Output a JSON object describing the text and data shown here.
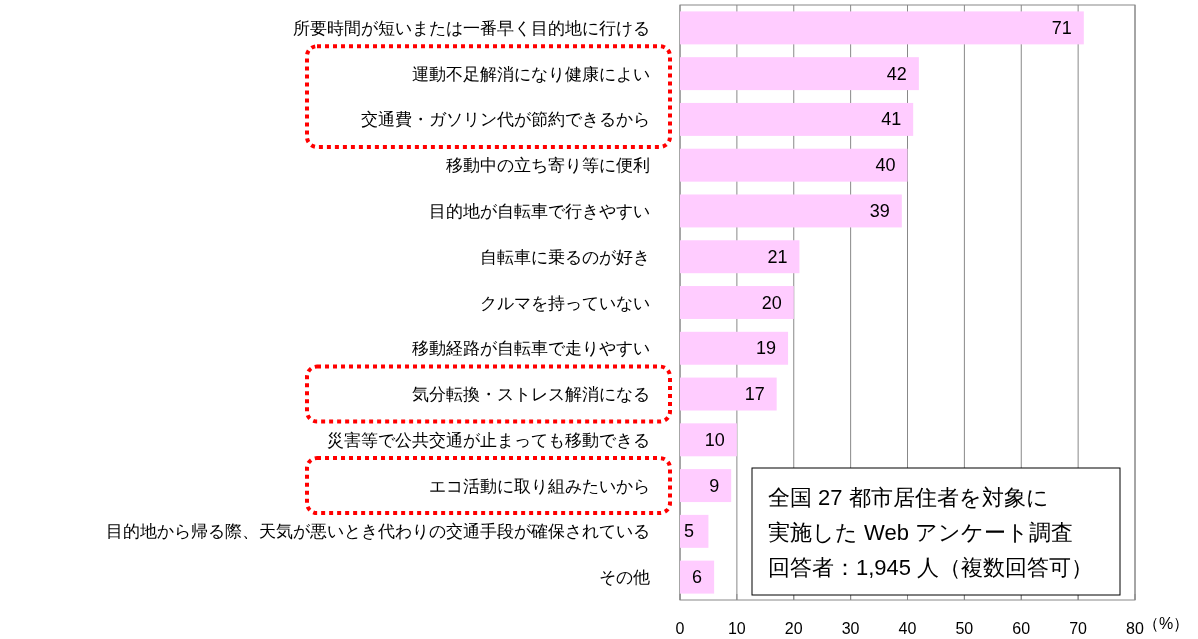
{
  "chart_data": {
    "type": "bar",
    "orientation": "horizontal",
    "categories": [
      "所要時間が短いまたは一番早く目的地に行ける",
      "運動不足解消になり健康によい",
      "交通費・ガソリン代が節約できるから",
      "移動中の立ち寄り等に便利",
      "目的地が自転車で行きやすい",
      "自転車に乗るのが好き",
      "クルマを持っていない",
      "移動経路が自転車で走りやすい",
      "気分転換・ストレス解消になる",
      "災害等で公共交通が止まっても移動できる",
      "エコ活動に取り組みたいから",
      "目的地から帰る際、天気が悪いとき代わりの交通手段が確保されている",
      "その他"
    ],
    "values": [
      71,
      42,
      41,
      40,
      39,
      21,
      20,
      19,
      17,
      10,
      9,
      5,
      6
    ],
    "color": "#ffccff",
    "data_labels": true,
    "xlim": [
      0,
      80
    ],
    "xticks": [
      0,
      10,
      20,
      30,
      40,
      50,
      60,
      70,
      80
    ],
    "xlabel": "（%）",
    "grid": "x",
    "annotations": [
      "全国 27 都市居住者を対象に",
      "実施した Web アンケート調査",
      "回答者：1,945 人（複数回答可）"
    ]
  }
}
